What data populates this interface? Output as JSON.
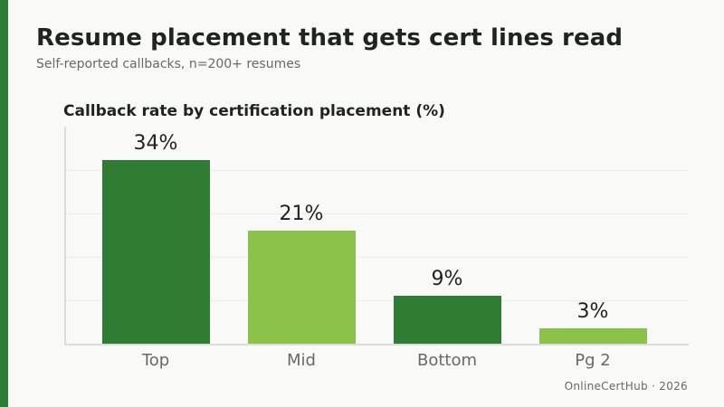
{
  "header": {
    "title": "Resume placement that gets cert lines read",
    "subtitle": "Self-reported callbacks, n=200+ resumes"
  },
  "chart": {
    "title": "Callback rate by certification placement (%)",
    "bars": [
      {
        "label": "Top",
        "value": 34,
        "display": "34%",
        "color": "#2e7d32"
      },
      {
        "label": "Mid",
        "value": 21,
        "display": "21%",
        "color": "#8bc34a"
      },
      {
        "label": "Bottom",
        "value": 9,
        "display": "9%",
        "color": "#2e7d32"
      },
      {
        "label": "Pg 2",
        "value": 3,
        "display": "3%",
        "color": "#8bc34a"
      }
    ]
  },
  "footer": {
    "credit": "OnlineCertHub · 2026"
  },
  "colors": {
    "accent": "#2e7d32",
    "dark_green": "#2e7d32",
    "light_green": "#8bc34a",
    "background": "#f9f9f7"
  },
  "chart_data": {
    "type": "bar",
    "title": "Callback rate by certification placement (%)",
    "subtitle": "Self-reported callbacks, n=200+ resumes",
    "categories": [
      "Top",
      "Mid",
      "Bottom",
      "Pg 2"
    ],
    "values": [
      34,
      21,
      9,
      3
    ],
    "data_labels": [
      "34%",
      "21%",
      "9%",
      "3%"
    ],
    "colors": [
      "#2e7d32",
      "#8bc34a",
      "#2e7d32",
      "#8bc34a"
    ],
    "xlabel": "",
    "ylabel": "",
    "ylim": [
      0,
      40
    ],
    "grid": true,
    "y_ticks_shown": false,
    "legend": null
  }
}
